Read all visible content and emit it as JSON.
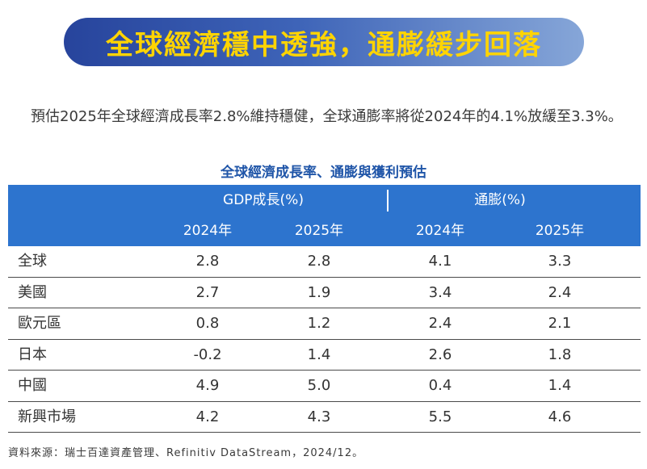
{
  "banner": {
    "title": "全球經濟穩中透強，通膨緩步回落"
  },
  "intro": {
    "text": "預估2025年全球經濟成長率2.8%維持穩健，全球通膨率將從2024年的4.1%放緩至3.3%。"
  },
  "table": {
    "title": "全球經濟成長率、通膨與獲利預估",
    "groups": [
      "GDP成長(%)",
      "通膨(%)"
    ],
    "years": [
      "2024年",
      "2025年",
      "2024年",
      "2025年"
    ],
    "rows": [
      {
        "region": "全球",
        "values": [
          "2.8",
          "2.8",
          "4.1",
          "3.3"
        ]
      },
      {
        "region": "美國",
        "values": [
          "2.7",
          "1.9",
          "3.4",
          "2.4"
        ]
      },
      {
        "region": "歐元區",
        "values": [
          "0.8",
          "1.2",
          "2.4",
          "2.1"
        ]
      },
      {
        "region": "日本",
        "values": [
          "-0.2",
          "1.4",
          "2.6",
          "1.8"
        ]
      },
      {
        "region": "中國",
        "values": [
          "4.9",
          "5.0",
          "0.4",
          "1.4"
        ]
      },
      {
        "region": "新興市場",
        "values": [
          "4.2",
          "4.3",
          "5.5",
          "4.6"
        ]
      }
    ]
  },
  "source": {
    "text": "資料來源：瑞士百達資產管理、Refinitiv DataStream，2024/12。"
  },
  "colors": {
    "banner_start": "#27449c",
    "banner_end": "#86a6d8",
    "banner_text": "#ffd400",
    "header_bg": "#2d74ce",
    "table_title": "#1f55a8"
  }
}
